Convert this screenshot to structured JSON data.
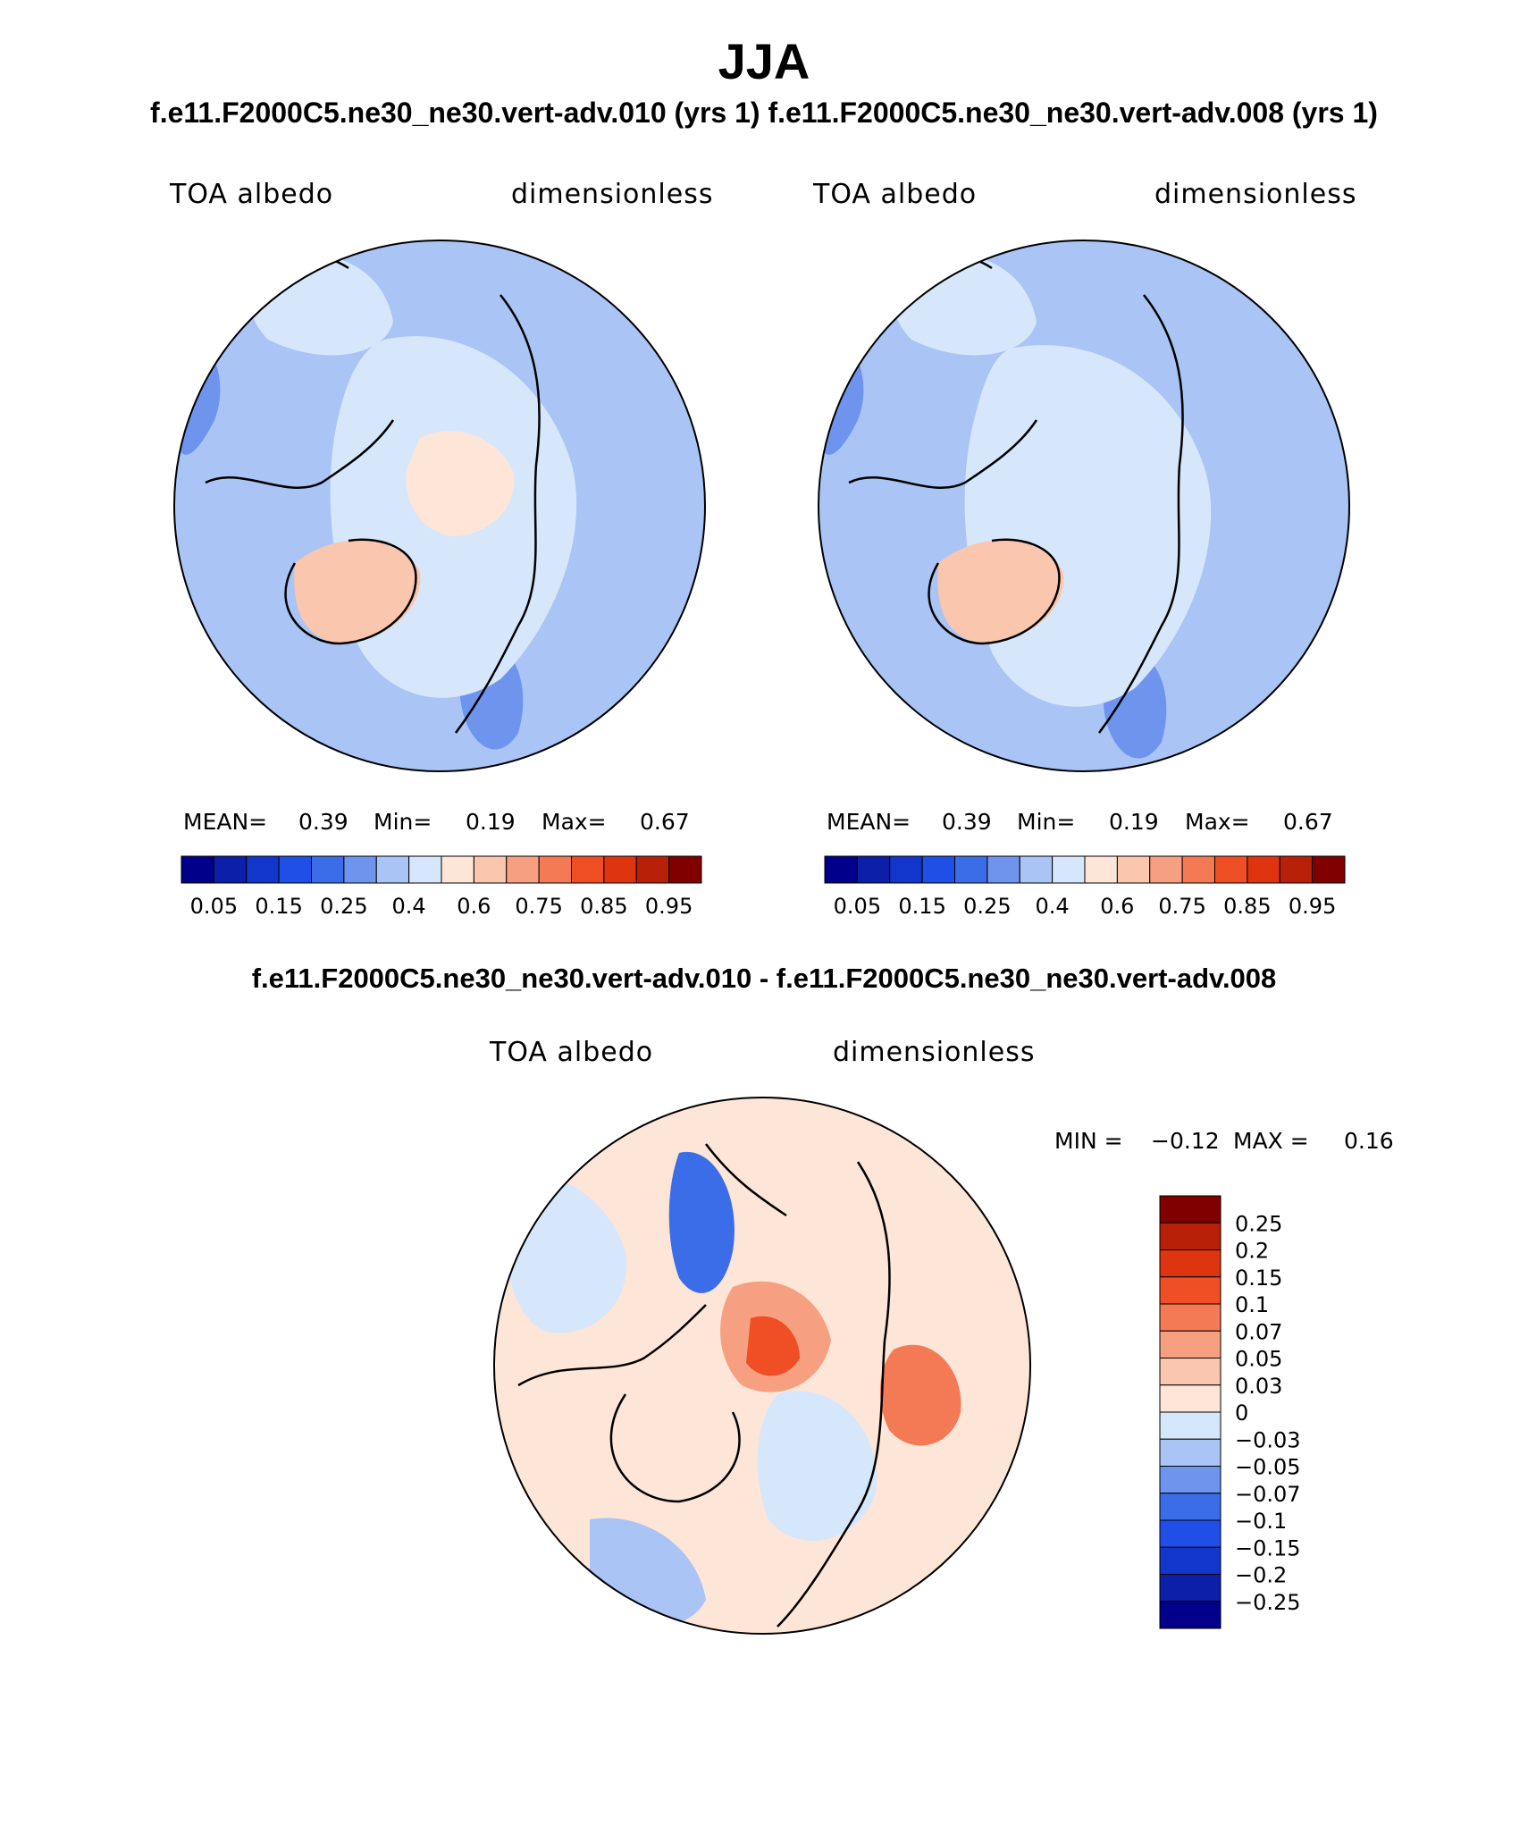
{
  "header": {
    "season": "JJA",
    "case_title": "f.e11.F2000C5.ne30_ne30.vert-adv.010 (yrs 1) f.e11.F2000C5.ne30_ne30.vert-adv.008 (yrs 1)",
    "diff_title": "f.e11.F2000C5.ne30_ne30.vert-adv.010 - f.e11.F2000C5.ne30_ne30.vert-adv.008"
  },
  "panels": [
    {
      "variable": "TOA albedo",
      "units": "dimensionless",
      "stats": {
        "mean_label": "MEAN=",
        "mean": "0.39",
        "min_label": "Min=",
        "min": "0.19",
        "max_label": "Max=",
        "max": "0.67"
      }
    },
    {
      "variable": "TOA albedo",
      "units": "dimensionless",
      "stats": {
        "mean_label": "MEAN=",
        "mean": "0.39",
        "min_label": "Min=",
        "min": "0.19",
        "max_label": "Max=",
        "max": "0.67"
      }
    }
  ],
  "abs_colorbar": {
    "colors": [
      "#00008B",
      "#0B1FA8",
      "#1236CC",
      "#1F4FE6",
      "#3C6DE8",
      "#6E94EE",
      "#A9C4F5",
      "#D6E6FB",
      "#FDE6D8",
      "#FAC6AE",
      "#F7A081",
      "#F47A55",
      "#F04E25",
      "#DE3410",
      "#B92008",
      "#800000"
    ],
    "tick_labels": [
      "0.05",
      "0.15",
      "0.25",
      "0.4",
      "0.6",
      "0.75",
      "0.85",
      "0.95"
    ]
  },
  "diff_panel": {
    "variable": "TOA albedo",
    "units": "dimensionless",
    "stats": {
      "min_label": "MIN =",
      "min": "−0.12",
      "max_label": "MAX =",
      "max": "0.16"
    },
    "colorbar": {
      "colors_top_to_bottom": [
        "#800000",
        "#B92008",
        "#DE3410",
        "#F04E25",
        "#F47A55",
        "#F7A081",
        "#FAC6AE",
        "#FDE6D8",
        "#D6E6FB",
        "#A9C4F5",
        "#6E94EE",
        "#3C6DE8",
        "#1F4FE6",
        "#1236CC",
        "#0B1FA8",
        "#00008B"
      ],
      "tick_labels": [
        "0.25",
        "0.2",
        "0.15",
        "0.1",
        "0.07",
        "0.05",
        "0.03",
        "0",
        "−0.03",
        "−0.05",
        "−0.07",
        "−0.1",
        "−0.15",
        "−0.2",
        "−0.25"
      ]
    }
  }
}
